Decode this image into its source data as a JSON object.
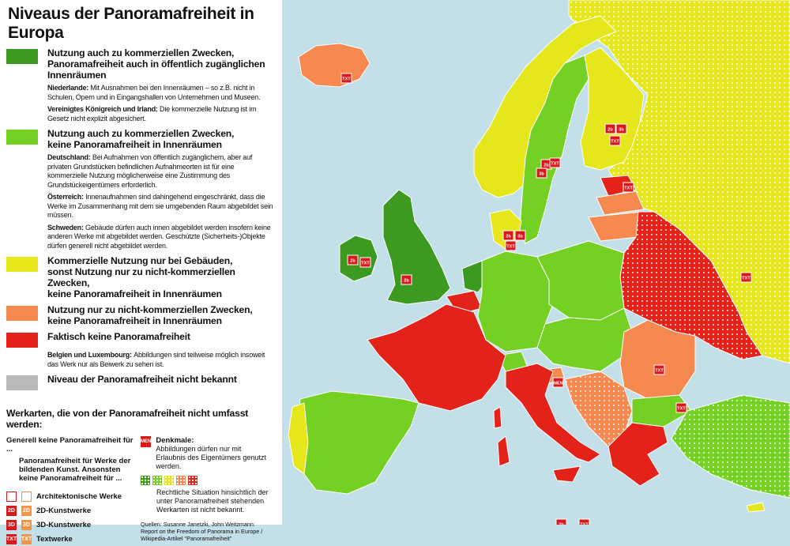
{
  "title": "Niveaus der Panoramafreiheit in Europa",
  "colors": {
    "dark_green": "#3b9a1f",
    "green": "#74d023",
    "yellow": "#e6e61c",
    "orange": "#f5894f",
    "red": "#e3221a",
    "grey": "#b9b9b9",
    "sea": "#c3dfe8"
  },
  "legend": [
    {
      "color": "dark_green",
      "label_lines": [
        "Nutzung auch zu kommerziellen Zwecken,",
        "Panoramafreiheit auch in öffentlich zugänglichen Innenräumen"
      ],
      "notes": [
        {
          "country": "Niederlande:",
          "text": "Mit Ausnahmen bei den Innenräumen – so z.B. nicht in Schulen, Opern und in Eingangshallen von Unternehmen und Museen."
        },
        {
          "country": "Vereinigtes Königreich und Irland:",
          "text": "Die kommerzielle Nutzung ist im Gesetz nicht explizit abgesichert."
        }
      ]
    },
    {
      "color": "green",
      "label_lines": [
        "Nutzung auch zu kommerziellen Zwecken,",
        "keine Panoramafreiheit in Innenräumen"
      ],
      "notes": [
        {
          "country": "Deutschland:",
          "text": "Bei Aufnahmen von öffentlich zugänglichem, aber auf privaten Grundstücken befindlichen Aufnahmeorten ist für eine kommerzielle Nutzung möglicherweise eine Zustimmung des Grundstückeigentümers erforderlich."
        },
        {
          "country": "Österreich:",
          "text": "Innenaufnahmen sind dahingehend eingeschränkt, dass die Werke im Zusammenhang mit dem sie umgebenden Raum abgebildet sein müssen."
        },
        {
          "country": "Schweden:",
          "text": "Gebäude dürfen auch innen abgebildet werden insofern keine anderen Werke mit abgebildet werden. Geschützte (Sicherheits-)Objekte dürfen generell nicht abgebildet werden."
        }
      ]
    },
    {
      "color": "yellow",
      "label_lines": [
        "Kommerzielle Nutzung nur bei Gebäuden,",
        "sonst Nutzung nur zu nicht-kommerziellen Zwecken,",
        "keine Panoramafreiheit in Innenräumen"
      ],
      "notes": []
    },
    {
      "color": "orange",
      "label_lines": [
        "Nutzung nur zu nicht-kommerziellen Zwecken,",
        "keine Panoramafreiheit in Innenräumen"
      ],
      "notes": []
    },
    {
      "color": "red",
      "label_lines": [
        "Faktisch keine Panoramafreiheit"
      ],
      "notes": [
        {
          "country": "Belgien und Luxembourg:",
          "text": "Abbildungen sind teilweise möglich insoweit das Werk nur als Beiwerk zu sehen ist."
        }
      ]
    },
    {
      "color": "grey",
      "label_lines": [
        "Niveau der Panoramafreiheit nicht bekannt"
      ],
      "notes": []
    }
  ],
  "works": {
    "heading": "Werkarten, die von der Panoramafreiheit nicht umfasst werden:",
    "general": "Generell keine Panoramafreiheit für ...",
    "bracket_text": "Panoramafreiheit für Werke der bildenden Kunst. Ansonsten keine Panoramafreiheit für ...",
    "items": [
      {
        "code": "",
        "label": "Architektonische Werke",
        "icon": "house-icon"
      },
      {
        "code": "2D",
        "label": "2D-Kunstwerke",
        "icon": "2d-icon"
      },
      {
        "code": "3D",
        "label": "3D-Kunstwerke",
        "icon": "3d-icon"
      },
      {
        "code": "TXT",
        "label": "Textwerke",
        "icon": "txt-icon"
      }
    ],
    "denkmal_code": "MEN",
    "denkmal_title": "Denkmale:",
    "denkmal_text": "Abbildungen dürfen nur mit Erlaubnis des Eigentümers genutzt werden.",
    "unknown_text": "Rechtliche Situation hinsichtlich der unter Panoramafreiheit stehenden Werkarten ist nicht bekannt.",
    "source": "Quellen: Susanne Janetzki, John Weitzmann: Report on the Freedom of Panorama in Europe / Wikipedia-Artikel \"Panoramafreiheit\""
  },
  "map_markers": [
    {
      "code": "TXT"
    },
    {
      "code": "2b"
    },
    {
      "code": "TXT"
    },
    {
      "code": "2b"
    },
    {
      "code": "2b"
    },
    {
      "code": "3b"
    },
    {
      "code": "TXT"
    },
    {
      "code": "2b"
    },
    {
      "code": "3b"
    },
    {
      "code": "TXT"
    },
    {
      "code": "2b"
    },
    {
      "code": "3b"
    },
    {
      "code": "TXT"
    },
    {
      "code": "TXT"
    },
    {
      "code": "TXT"
    },
    {
      "code": "TXT"
    },
    {
      "code": "MEN"
    },
    {
      "code": "TXT"
    },
    {
      "code": "2b"
    },
    {
      "code": "TXT"
    }
  ]
}
